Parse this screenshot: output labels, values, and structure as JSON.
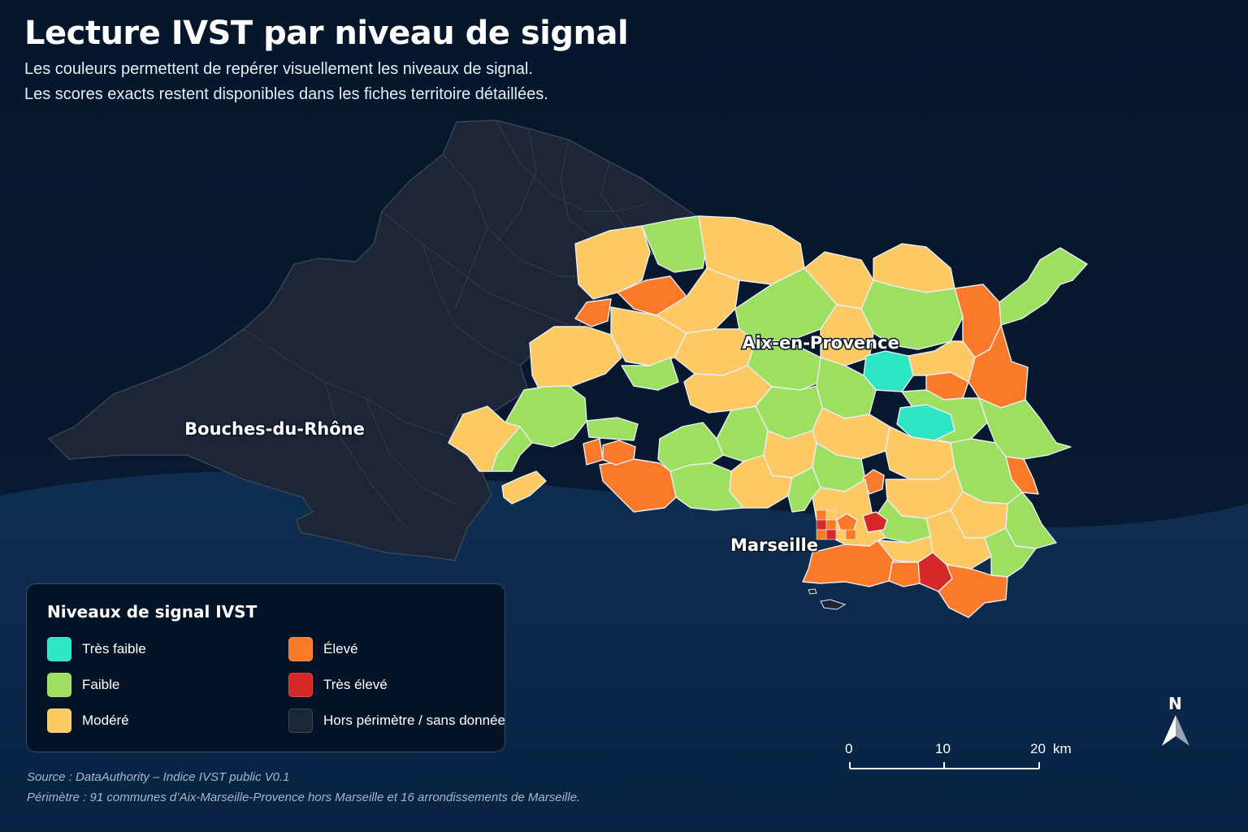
{
  "header": {
    "title": "Lecture IVST par niveau de signal",
    "subtitle_line1": "Les couleurs permettent de repérer visuellement les niveaux de signal.",
    "subtitle_line2": "Les scores exacts restent disponibles dans les fiches territoire détaillées."
  },
  "map": {
    "labels": {
      "department": "Bouches-du-Rhône",
      "aix": "Aix-en-Provence",
      "marseille": "Marseille"
    }
  },
  "legend": {
    "title": "Niveaux de signal IVST",
    "items": [
      {
        "label": "Très faible",
        "color": "#2ee6c4"
      },
      {
        "label": "Faible",
        "color": "#9ddf5f"
      },
      {
        "label": "Modéré",
        "color": "#fcc963"
      },
      {
        "label": "Élevé",
        "color": "#fb7a2a"
      },
      {
        "label": "Très élevé",
        "color": "#d62828"
      },
      {
        "label": "Hors périmètre / sans donnée",
        "color": "#1b2636"
      }
    ]
  },
  "scale_bar": {
    "ticks": [
      "0",
      "10",
      "20"
    ],
    "unit": "km"
  },
  "north_arrow": {
    "label": "N",
    "icon": "north-arrow-icon"
  },
  "footer": {
    "source": "Source : DataAuthority – Indice IVST public V0.1",
    "perimeter": "Périmètre : 91 communes d’Aix-Marseille-Provence hors Marseille et 16 arrondissements de Marseille."
  }
}
